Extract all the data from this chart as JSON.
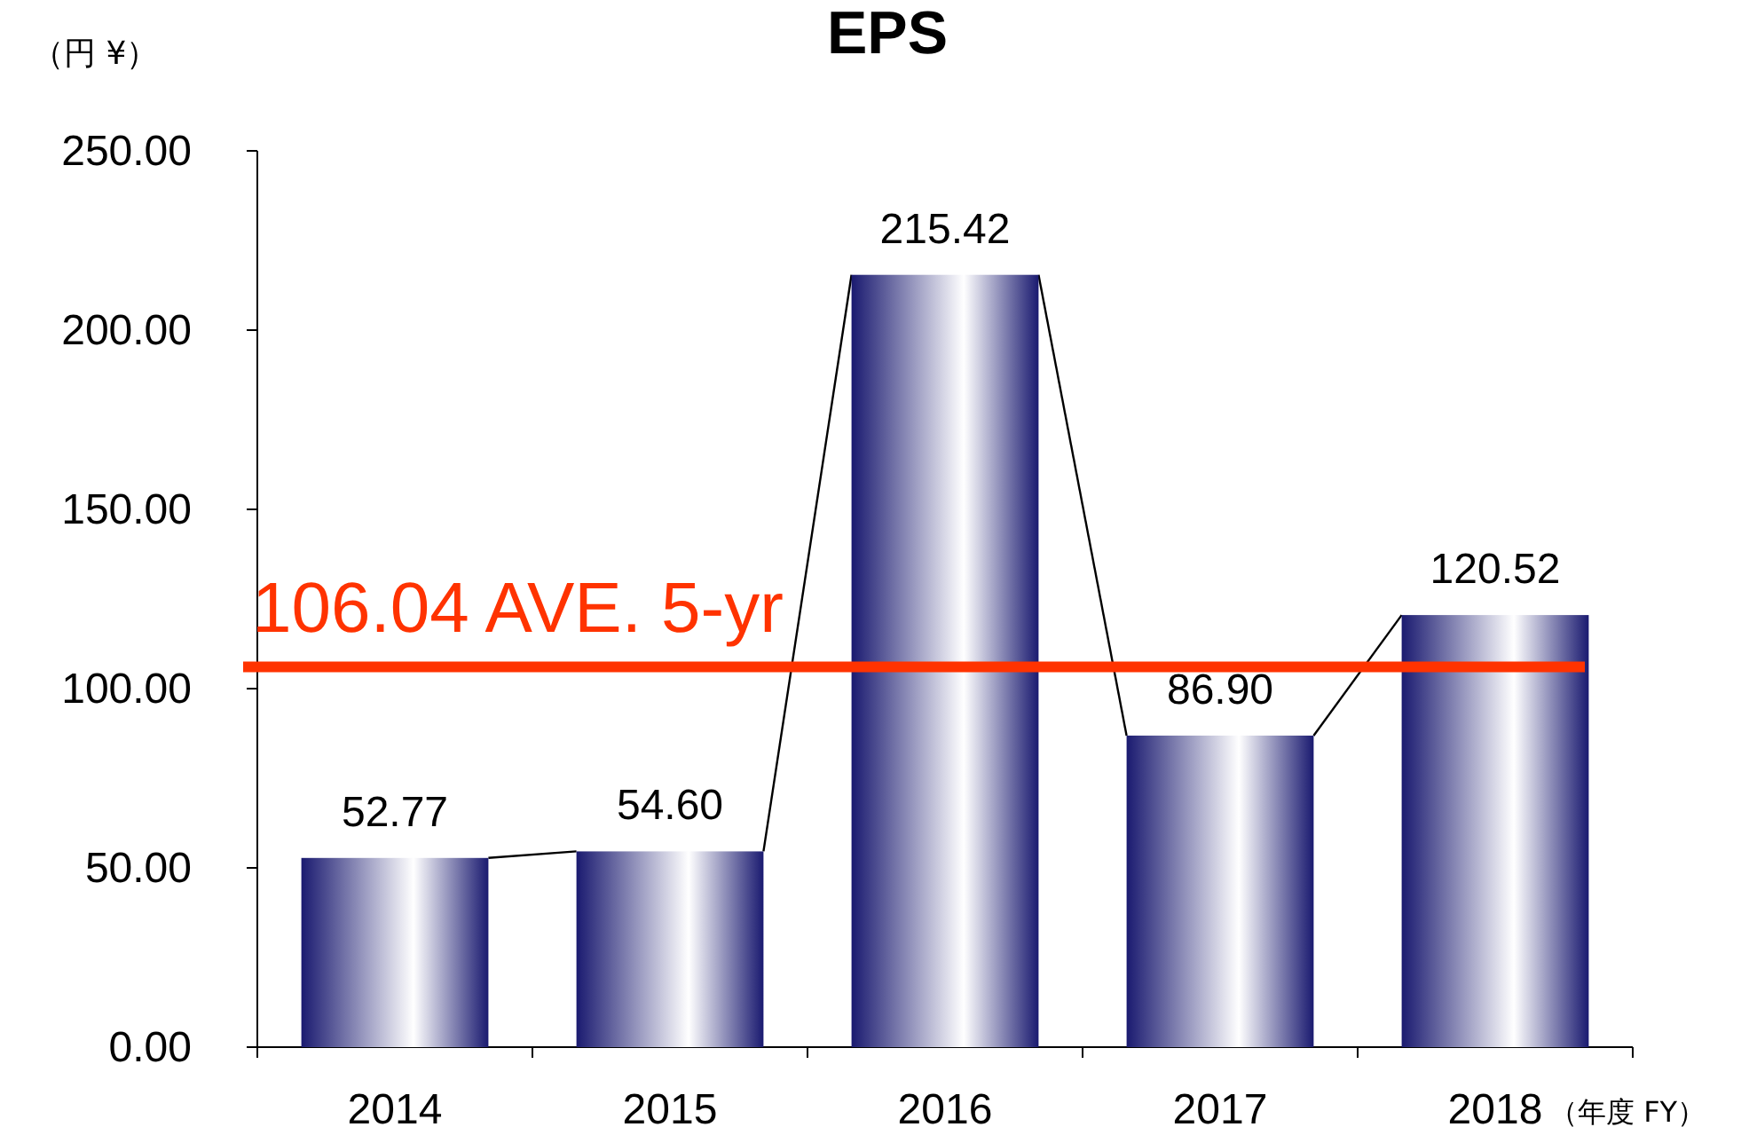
{
  "chart_data": {
    "type": "bar",
    "title": "EPS",
    "ylabel": "（円 ¥）",
    "xlabel": "（年度 FY）",
    "categories": [
      "2014",
      "2015",
      "2016",
      "2017",
      "2018"
    ],
    "values": [
      52.77,
      54.6,
      215.42,
      86.9,
      120.52
    ],
    "value_labels": [
      "52.77",
      "54.60",
      "215.42",
      "86.90",
      "120.52"
    ],
    "color": "#1a1a70",
    "ylim": [
      0,
      250
    ],
    "yticks": [
      {
        "value": 0,
        "label": "0.00"
      },
      {
        "value": 50,
        "label": "50.00"
      },
      {
        "value": 100,
        "label": "100.00"
      },
      {
        "value": 150,
        "label": "150.00"
      },
      {
        "value": 200,
        "label": "200.00"
      },
      {
        "value": 250,
        "label": "250.00"
      }
    ],
    "ref_lines": [
      {
        "axis": "y",
        "value": 106.04,
        "label": "106.04 AVE. 5-yr",
        "color": "#ff3300"
      }
    ]
  }
}
